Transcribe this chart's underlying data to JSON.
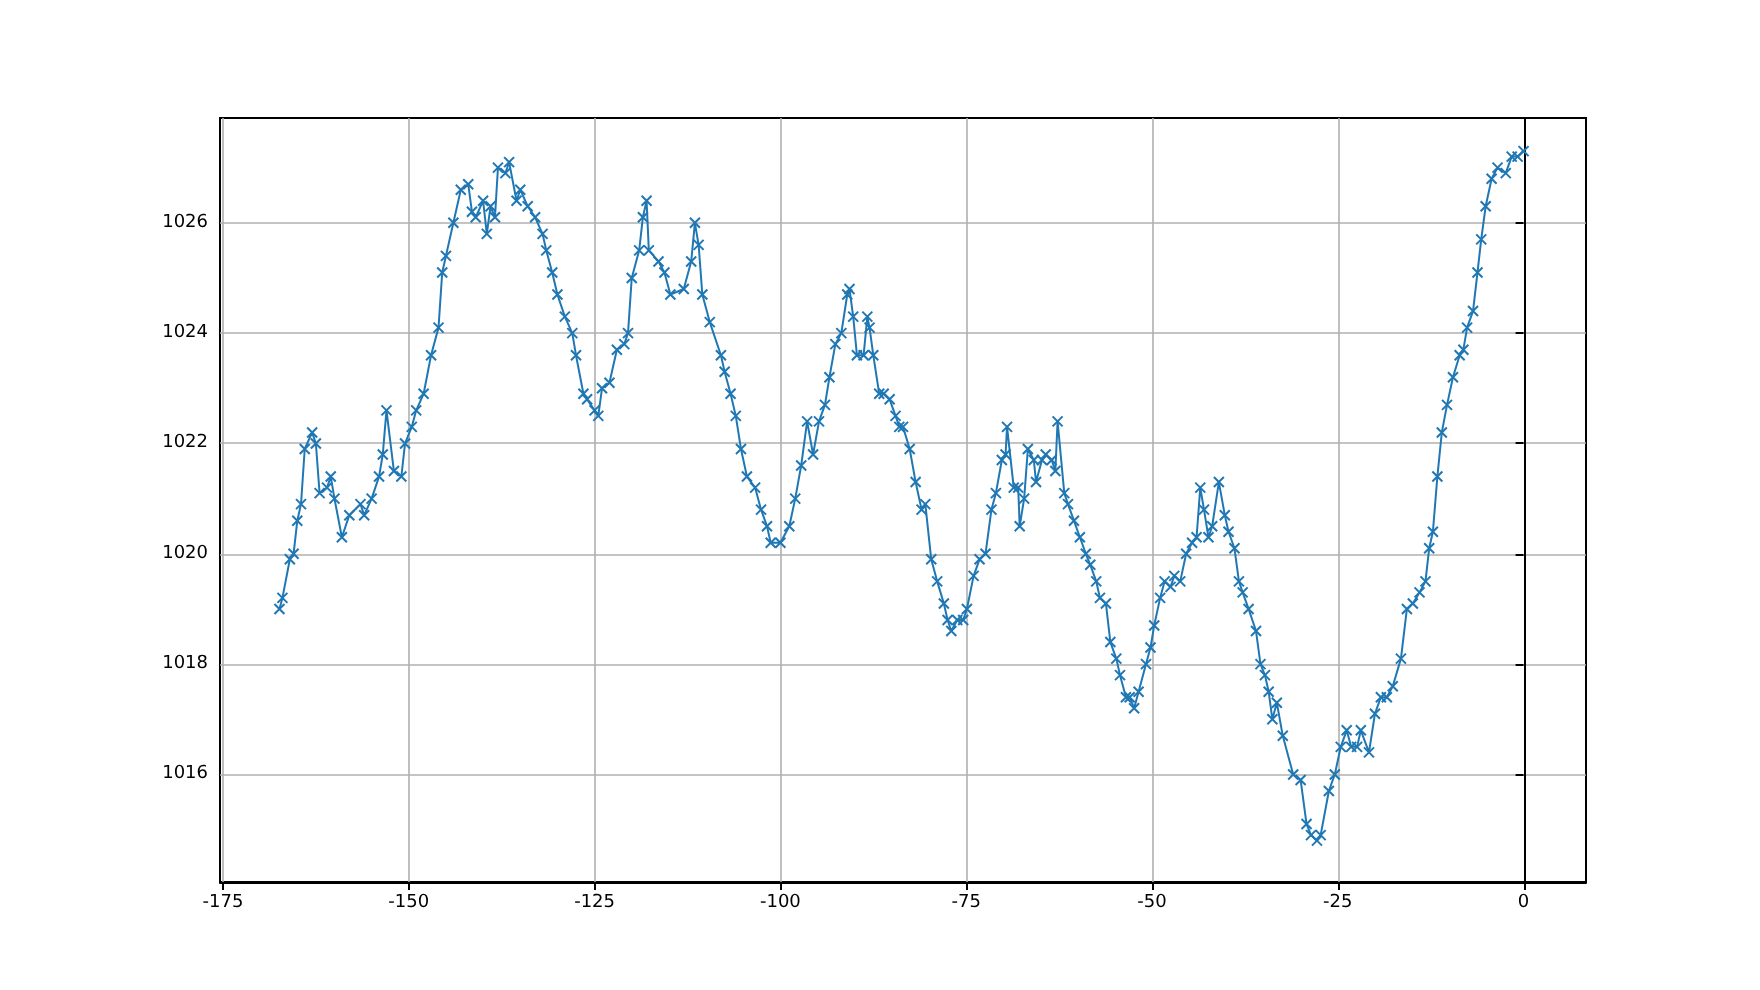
{
  "chart_data": {
    "type": "line",
    "marker": "cross",
    "line_style": "solid",
    "grid": true,
    "xlim": [
      -175.4,
      8.4
    ],
    "xticks": [
      -175,
      -150,
      -125,
      -100,
      -75,
      -50,
      -25,
      0
    ],
    "ylim": [
      1014.05,
      1027.9
    ],
    "yticks": [
      1016,
      1018,
      1020,
      1022,
      1024,
      1026
    ],
    "series": [
      {
        "color": "#1f77b4",
        "x": [
          -167.4,
          -167,
          -166,
          -165.5,
          -165,
          -164.5,
          -164,
          -163,
          -162.5,
          -162,
          -161,
          -160.5,
          -160,
          -159,
          -158,
          -156.5,
          -156,
          -155,
          -154,
          -153.5,
          -153,
          -152,
          -151,
          -150.5,
          -149.6,
          -149,
          -148,
          -147,
          -146,
          -145.5,
          -145,
          -144,
          -143,
          -142,
          -141.5,
          -141,
          -140,
          -139.5,
          -139,
          -138.4,
          -138,
          -137,
          -136.5,
          -135.5,
          -135,
          -134,
          -133,
          -132,
          -131.5,
          -130.7,
          -130,
          -129,
          -128,
          -127.5,
          -126.5,
          -126,
          -125,
          -124.5,
          -124,
          -123,
          -122,
          -121,
          -120.5,
          -120,
          -119,
          -118.5,
          -118,
          -117.7,
          -116.4,
          -115.6,
          -114.8,
          -113,
          -112,
          -111.5,
          -111,
          -110.5,
          -109.5,
          -108,
          -107.5,
          -106.7,
          -106,
          -105.3,
          -104.5,
          -103.4,
          -102.6,
          -101.8,
          -101.3,
          -100,
          -98.8,
          -98,
          -97.2,
          -96.4,
          -95.6,
          -94.8,
          -94,
          -93.4,
          -92.6,
          -91.8,
          -91,
          -90.7,
          -90.2,
          -89.7,
          -88.8,
          -88.3,
          -88,
          -87.5,
          -86.7,
          -86.1,
          -85.3,
          -84.5,
          -84,
          -83.5,
          -82.6,
          -81.8,
          -81,
          -80.5,
          -79.7,
          -78.9,
          -78,
          -77.5,
          -77,
          -76.2,
          -75.4,
          -74.9,
          -74,
          -73.2,
          -72.4,
          -71.6,
          -71,
          -70.2,
          -69.7,
          -69.5,
          -68.6,
          -68,
          -67.8,
          -67.2,
          -66.7,
          -65.9,
          -65.6,
          -64.8,
          -64.3,
          -63.5,
          -63,
          -62.7,
          -61.8,
          -61.3,
          -60.5,
          -59.7,
          -58.9,
          -58.3,
          -57.5,
          -57,
          -56.2,
          -55.6,
          -54.8,
          -54.3,
          -53.5,
          -53,
          -52.4,
          -51.8,
          -50.8,
          -50.2,
          -49.7,
          -48.9,
          -48.3,
          -47.5,
          -47,
          -46.2,
          -45.4,
          -44.6,
          -44,
          -43.5,
          -43,
          -42.4,
          -41.9,
          -41,
          -40.2,
          -39.7,
          -38.9,
          -38.3,
          -37.8,
          -37,
          -36,
          -35.4,
          -34.8,
          -34.3,
          -33.8,
          -33.2,
          -32.4,
          -31,
          -30,
          -29.2,
          -28.6,
          -27.8,
          -27.3,
          -26.2,
          -25.4,
          -24.6,
          -23.8,
          -23.2,
          -22.4,
          -21.9,
          -20.8,
          -20,
          -19.2,
          -18.4,
          -17.6,
          -16.5,
          -15.7,
          -14.9,
          -14,
          -13.2,
          -12.7,
          -12.2,
          -11.6,
          -11,
          -10.3,
          -9.5,
          -8.6,
          -8.1,
          -7.6,
          -6.8,
          -6.2,
          -5.7,
          -5.1,
          -4.3,
          -3.5,
          -2.4,
          -1.6,
          -0.8,
          0
        ],
        "values": [
          1019.0,
          1019.2,
          1019.9,
          1020.0,
          1020.6,
          1020.9,
          1021.9,
          1022.2,
          1022.0,
          1021.1,
          1021.2,
          1021.4,
          1021.0,
          1020.3,
          1020.7,
          1020.9,
          1020.7,
          1021.0,
          1021.4,
          1021.8,
          1022.6,
          1021.5,
          1021.4,
          1022.0,
          1022.3,
          1022.6,
          1022.9,
          1023.6,
          1024.1,
          1025.1,
          1025.4,
          1026.0,
          1026.6,
          1026.7,
          1026.2,
          1026.1,
          1026.4,
          1025.8,
          1026.3,
          1026.1,
          1027.0,
          1026.9,
          1027.1,
          1026.4,
          1026.6,
          1026.3,
          1026.1,
          1025.8,
          1025.5,
          1025.1,
          1024.7,
          1024.3,
          1024.0,
          1023.6,
          1022.9,
          1022.8,
          1022.6,
          1022.5,
          1023.0,
          1023.1,
          1023.7,
          1023.8,
          1024.0,
          1025.0,
          1025.5,
          1026.1,
          1026.4,
          1025.5,
          1025.3,
          1025.1,
          1024.7,
          1024.8,
          1025.3,
          1026.0,
          1025.6,
          1024.7,
          1024.2,
          1023.6,
          1023.3,
          1022.9,
          1022.5,
          1021.9,
          1021.4,
          1021.2,
          1020.8,
          1020.5,
          1020.2,
          1020.2,
          1020.5,
          1021.0,
          1021.6,
          1022.4,
          1021.8,
          1022.4,
          1022.7,
          1023.2,
          1023.8,
          1024.0,
          1024.7,
          1024.8,
          1024.3,
          1023.6,
          1023.6,
          1024.3,
          1024.1,
          1023.6,
          1022.9,
          1022.9,
          1022.8,
          1022.5,
          1022.3,
          1022.3,
          1021.9,
          1021.3,
          1020.8,
          1020.9,
          1019.9,
          1019.5,
          1019.1,
          1018.8,
          1018.6,
          1018.8,
          1018.8,
          1019.0,
          1019.6,
          1019.9,
          1020.0,
          1020.8,
          1021.1,
          1021.7,
          1021.8,
          1022.3,
          1021.2,
          1021.2,
          1020.5,
          1021.0,
          1021.9,
          1021.7,
          1021.3,
          1021.7,
          1021.8,
          1021.7,
          1021.5,
          1022.4,
          1021.1,
          1020.9,
          1020.6,
          1020.3,
          1020.0,
          1019.8,
          1019.5,
          1019.2,
          1019.1,
          1018.4,
          1018.1,
          1017.8,
          1017.4,
          1017.4,
          1017.2,
          1017.5,
          1018.0,
          1018.3,
          1018.7,
          1019.2,
          1019.5,
          1019.4,
          1019.6,
          1019.5,
          1020.0,
          1020.2,
          1020.3,
          1021.2,
          1020.8,
          1020.3,
          1020.5,
          1021.3,
          1020.7,
          1020.4,
          1020.1,
          1019.5,
          1019.3,
          1019.0,
          1018.6,
          1018.0,
          1017.8,
          1017.5,
          1017.0,
          1017.3,
          1016.7,
          1016.0,
          1015.9,
          1015.1,
          1014.9,
          1014.8,
          1014.9,
          1015.7,
          1016.0,
          1016.5,
          1016.8,
          1016.5,
          1016.5,
          1016.8,
          1016.4,
          1017.1,
          1017.4,
          1017.4,
          1017.6,
          1018.1,
          1019.0,
          1019.1,
          1019.3,
          1019.5,
          1020.1,
          1020.4,
          1021.4,
          1022.2,
          1022.7,
          1023.2,
          1023.6,
          1023.7,
          1024.1,
          1024.4,
          1025.1,
          1025.7,
          1026.3,
          1026.8,
          1027.0,
          1026.9,
          1027.2,
          1027.2,
          1027.3
        ]
      }
    ]
  }
}
